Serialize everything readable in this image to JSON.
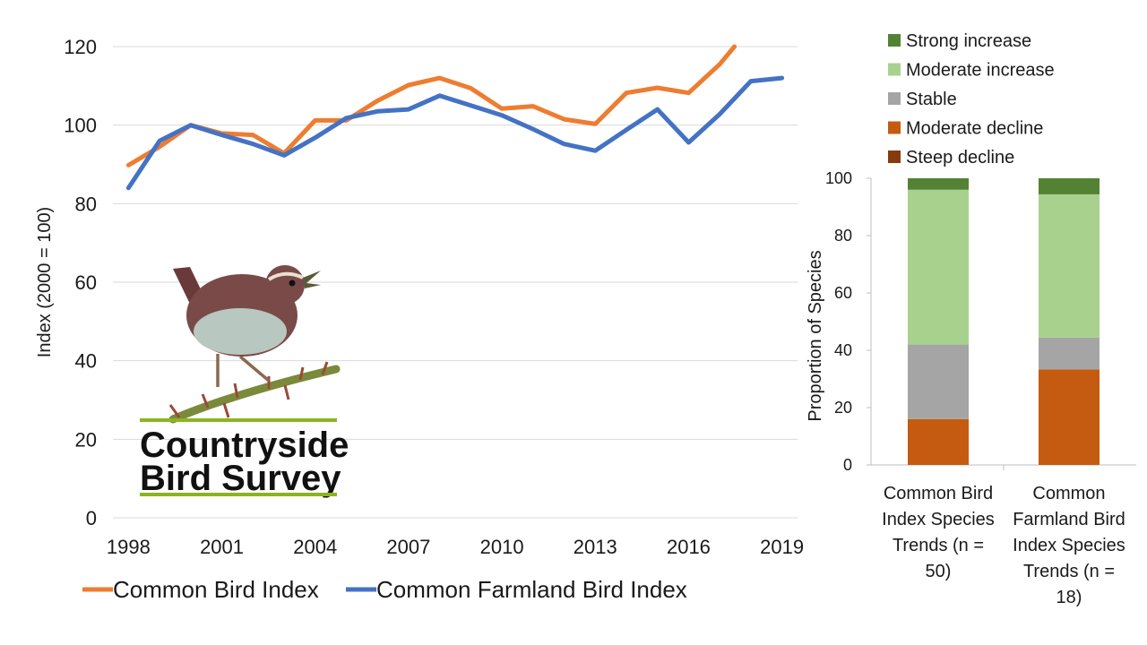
{
  "chart_data": [
    {
      "type": "line",
      "ylabel": "Index (2000 = 100)",
      "ylim": [
        0,
        120
      ],
      "yticks": [
        "0",
        "20",
        "40",
        "60",
        "80",
        "100",
        "120"
      ],
      "xtick_labels": [
        "1998",
        "2001",
        "2004",
        "2007",
        "2010",
        "2013",
        "2016",
        "2019"
      ],
      "x": [
        1998,
        1999,
        2000,
        2001,
        2002,
        2003,
        2004,
        2005,
        2006,
        2007,
        2008,
        2009,
        2010,
        2011,
        2012,
        2013,
        2014,
        2015,
        2016,
        2017,
        2018,
        2019
      ],
      "grid": true,
      "legend_position": "bottom",
      "series": [
        {
          "name": "Common Bird Index",
          "color": "#ED7D31",
          "values": [
            89.8,
            94.5,
            100,
            97.9,
            97.5,
            92.8,
            101.2,
            101.2,
            106.2,
            110.2,
            112,
            109.4,
            104.2,
            104.8,
            101.5,
            100.3,
            108.2,
            109.5,
            108.2,
            115.5,
            125,
            null
          ]
        },
        {
          "name": "Common Farmland Bird Index",
          "color": "#4472C4",
          "values": [
            84,
            96,
            100,
            97.5,
            95.2,
            92.3,
            96.8,
            101.8,
            103.5,
            104,
            107.5,
            105,
            102.5,
            99,
            95.2,
            93.5,
            98.8,
            104,
            95.6,
            102.8,
            111.2,
            112
          ]
        }
      ]
    },
    {
      "type": "bar",
      "stacked": true,
      "ylabel": "Proportion of Species",
      "ylim": [
        0,
        100
      ],
      "yticks": [
        "0",
        "20",
        "40",
        "60",
        "80",
        "100"
      ],
      "legend_position": "top",
      "categories": [
        [
          "Common Bird",
          "Index Species",
          "Trends (n =",
          "50)"
        ],
        [
          "Common",
          "Farmland Bird",
          "Index Species",
          "Trends (n =",
          "18)"
        ]
      ],
      "series": [
        {
          "name": "Steep decline",
          "color": "#843C0C",
          "values": [
            0,
            0
          ]
        },
        {
          "name": "Moderate decline",
          "color": "#C55A11",
          "values": [
            16,
            33.3
          ]
        },
        {
          "name": "Stable",
          "color": "#A5A5A5",
          "values": [
            26,
            11.1
          ]
        },
        {
          "name": "Moderate increase",
          "color": "#A9D18E",
          "values": [
            54,
            50
          ]
        },
        {
          "name": "Strong increase",
          "color": "#548235",
          "values": [
            4,
            5.6
          ]
        }
      ]
    }
  ],
  "logo": {
    "line1": "Countryside",
    "line2": "Bird Survey"
  }
}
